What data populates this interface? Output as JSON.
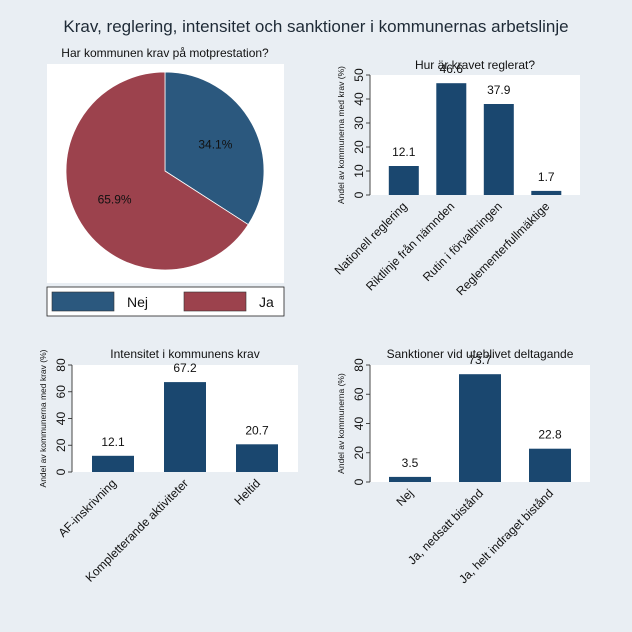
{
  "title": "Krav, reglering, intensitet och sanktioner i kommunernas arbetslinje",
  "colors": {
    "background": "#e9eef3",
    "plot_bg": "#ffffff",
    "bar": "#1a476f",
    "pie_nej": "#2b587e",
    "pie_ja": "#9c424d"
  },
  "chart_data": [
    {
      "type": "pie",
      "title": "Har kommunen krav på motprestation?",
      "categories": [
        "Nej",
        "Ja"
      ],
      "values": [
        34.1,
        65.9
      ],
      "labels": [
        "34.1%",
        "65.9%"
      ],
      "legend": {
        "position": "bottom",
        "entries": [
          "Nej",
          "Ja"
        ]
      }
    },
    {
      "type": "bar",
      "title": "Hur är kravet reglerat?",
      "ylabel": "Andel av kommunerna med krav (%)",
      "categories": [
        "Nationell reglering",
        "Riktlinje från nämnden",
        "Rutin i förvaltningen",
        "Reglementerfullmäktige"
      ],
      "values": [
        12.1,
        46.6,
        37.9,
        1.7
      ],
      "value_labels": [
        "12.1",
        "46.6",
        "37.9",
        "1.7"
      ],
      "ylim": [
        0,
        50
      ],
      "yticks": [
        0,
        10,
        20,
        30,
        40,
        50
      ],
      "grid": false
    },
    {
      "type": "bar",
      "title": "Intensitet i kommunens krav",
      "ylabel": "Andel av kommunerna med krav (%)",
      "categories": [
        "AF-inskrivning",
        "Kompletterande aktiviteter",
        "Heltid"
      ],
      "values": [
        12.1,
        67.2,
        20.7
      ],
      "value_labels": [
        "12.1",
        "67.2",
        "20.7"
      ],
      "ylim": [
        0,
        80
      ],
      "yticks": [
        0,
        20,
        40,
        60,
        80
      ],
      "grid": false
    },
    {
      "type": "bar",
      "title": "Sanktioner vid uteblivet deltagande",
      "ylabel": "Andel av kommunerna (%)",
      "categories": [
        "Nej",
        "Ja, nedsatt bistånd",
        "Ja, helt indraget bistånd"
      ],
      "values": [
        3.5,
        73.7,
        22.8
      ],
      "value_labels": [
        "3.5",
        "73.7",
        "22.8"
      ],
      "ylim": [
        0,
        80
      ],
      "yticks": [
        0,
        20,
        40,
        60,
        80
      ],
      "grid": false
    }
  ]
}
